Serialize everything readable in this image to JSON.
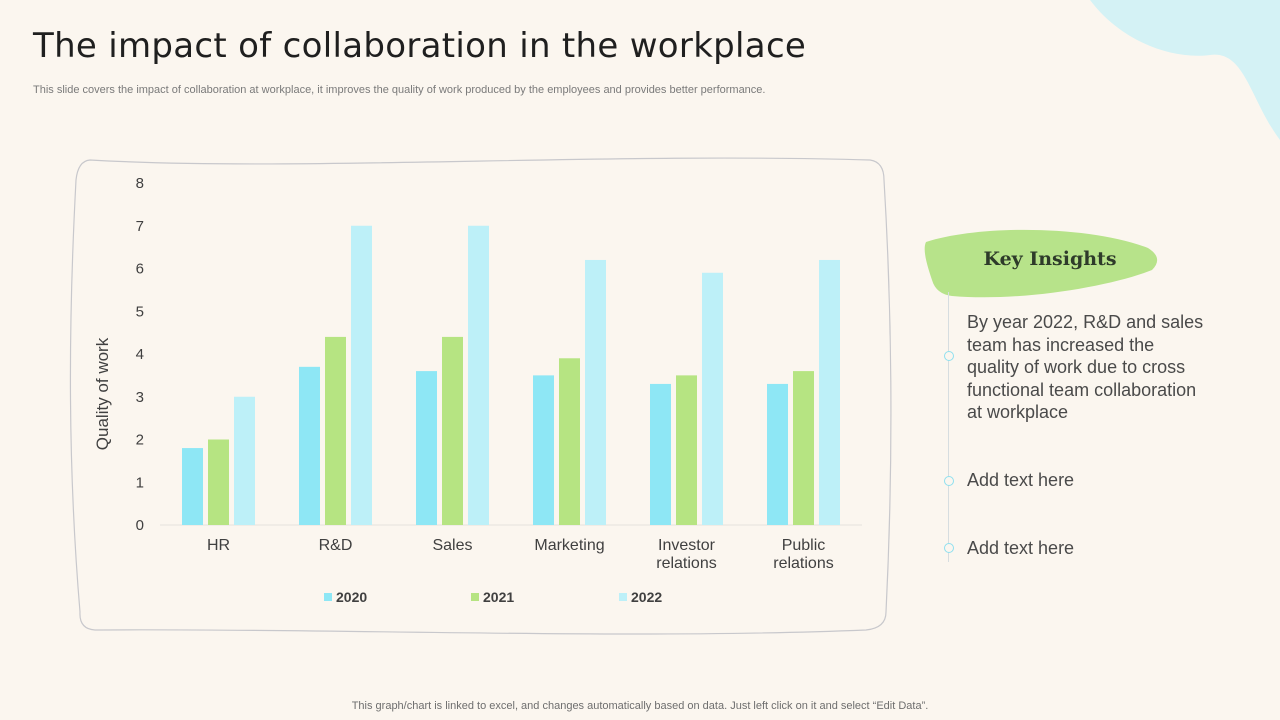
{
  "slide": {
    "title": "The impact of collaboration in the workplace",
    "subtitle": "This slide covers the impact of collaboration at workplace, it improves the quality of work produced by the employees and provides better performance.",
    "footer": "This graph/chart is linked to excel,  and changes automatically based on data. Just left click on it and select “Edit Data”."
  },
  "insights": {
    "heading": "Key Insights",
    "items": [
      "By year 2022, R&D and sales team has increased the quality of work due to cross functional team collaboration at workplace",
      "Add text here",
      "Add text here"
    ]
  },
  "colors": {
    "accent_green": "#b7e38a",
    "accent_blue": "#c5f0f5",
    "series_2020": "#8ee7f5",
    "series_2021": "#b6e482",
    "series_2022": "#bdf0f8"
  },
  "chart_data": {
    "type": "bar",
    "title": "",
    "xlabel": "",
    "ylabel": "Quality of work",
    "ylim": [
      0,
      8
    ],
    "yticks": [
      0,
      1,
      2,
      3,
      4,
      5,
      6,
      7,
      8
    ],
    "grid": false,
    "legend": "bottom",
    "categories": [
      "HR",
      "R&D",
      "Sales",
      "Marketing",
      "Investor relations",
      "Public relations"
    ],
    "series": [
      {
        "name": "2020",
        "color": "#8ee7f5",
        "values": [
          1.8,
          3.7,
          3.6,
          3.5,
          3.3,
          3.3
        ]
      },
      {
        "name": "2021",
        "color": "#b6e482",
        "values": [
          2.0,
          4.4,
          4.4,
          3.9,
          3.5,
          3.6
        ]
      },
      {
        "name": "2022",
        "color": "#bdf0f8",
        "values": [
          3.0,
          7.0,
          7.0,
          6.2,
          5.9,
          6.2
        ]
      }
    ]
  }
}
